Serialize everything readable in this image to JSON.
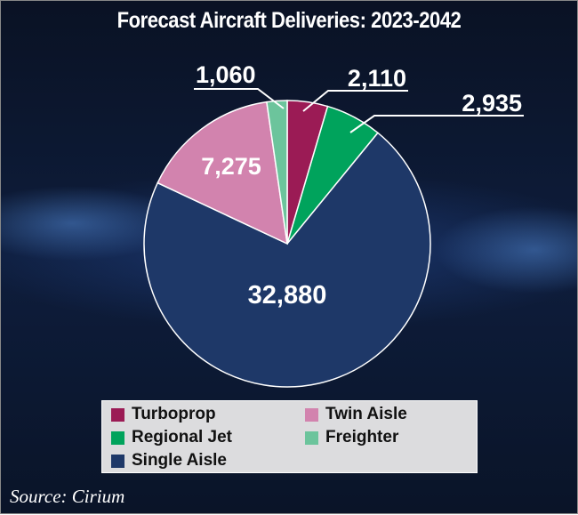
{
  "chart_data": {
    "type": "pie",
    "title": "Forecast Aircraft Deliveries: 2023-2042",
    "start_angle": "12 o'clock, clockwise",
    "slices": [
      {
        "name": "Turboprop",
        "value": 2110,
        "label": "2,110",
        "color": "#9b1b55"
      },
      {
        "name": "Regional Jet",
        "value": 2935,
        "label": "2,935",
        "color": "#00a35c"
      },
      {
        "name": "Single Aisle",
        "value": 32880,
        "label": "32,880",
        "color": "#1e3868"
      },
      {
        "name": "Twin Aisle",
        "value": 7275,
        "label": "7,275",
        "color": "#d283ae"
      },
      {
        "name": "Freighter",
        "value": 1060,
        "label": "1,060",
        "color": "#6cc49c"
      }
    ],
    "legend_position": "bottom"
  },
  "source": "Source: Cirium"
}
